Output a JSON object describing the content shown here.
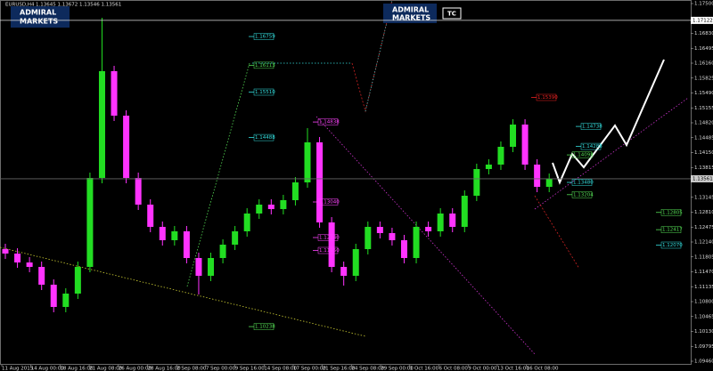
{
  "header": {
    "symbol": "EURUSD,H4",
    "ohlc": "1.13645 1.13672 1.13546 1.13561"
  },
  "brand": {
    "line1": "ADMIRAL",
    "line2": "MARKETS",
    "button": "TC"
  },
  "chart_data": {
    "type": "candlestick",
    "ylim": [
      1.0938,
      1.1758
    ],
    "up_color": "#22dd22",
    "down_color": "#ff33ff",
    "yticks": [
      {
        "value": 1.175,
        "label": "1.17500"
      },
      {
        "value": 1.1683,
        "label": "1.16830"
      },
      {
        "value": 1.16495,
        "label": "1.16495"
      },
      {
        "value": 1.1616,
        "label": "1.16160"
      },
      {
        "value": 1.15825,
        "label": "1.15825"
      },
      {
        "value": 1.1549,
        "label": "1.15490"
      },
      {
        "value": 1.15155,
        "label": "1.15155"
      },
      {
        "value": 1.1482,
        "label": "1.14820"
      },
      {
        "value": 1.14485,
        "label": "1.14485"
      },
      {
        "value": 1.1415,
        "label": "1.14150"
      },
      {
        "value": 1.13815,
        "label": "1.13815"
      },
      {
        "value": 1.13145,
        "label": "1.13145"
      },
      {
        "value": 1.1281,
        "label": "1.12810"
      },
      {
        "value": 1.12475,
        "label": "1.12475"
      },
      {
        "value": 1.1214,
        "label": "1.12140"
      },
      {
        "value": 1.11805,
        "label": "1.11805"
      },
      {
        "value": 1.1147,
        "label": "1.11470"
      },
      {
        "value": 1.11135,
        "label": "1.11135"
      },
      {
        "value": 1.108,
        "label": "1.10800"
      },
      {
        "value": 1.10465,
        "label": "1.10465"
      },
      {
        "value": 1.1013,
        "label": "1.10130"
      },
      {
        "value": 1.09795,
        "label": "1.09795"
      },
      {
        "value": 1.0946,
        "label": "1.09460"
      }
    ],
    "marker_line": {
      "value": 1.17122,
      "label": "1.17122"
    },
    "current_price": {
      "value": 1.13561,
      "label": "1.13561"
    },
    "x_labels": [
      "11 Aug 2015",
      "14 Aug 00:00",
      "18 Aug 16:00",
      "21 Aug 08:00",
      "26 Aug 00:00",
      "28 Aug 16:00",
      "2 Sep 08:00",
      "7 Sep 00:00",
      "9 Sep 16:00",
      "14 Sep 08:00",
      "17 Sep 00:00",
      "21 Sep 16:00",
      "24 Sep 08:00",
      "29 Sep 00:00",
      "1 Oct 16:00",
      "6 Oct 08:00",
      "9 Oct 00:00",
      "13 Oct 16:00",
      "16 Oct 08:00"
    ],
    "open": [
      1.1198,
      1.1188,
      1.1168,
      1.1158,
      1.1118,
      1.1068,
      1.1098,
      1.1158,
      1.1358,
      1.1598,
      1.1498,
      1.1358,
      1.1298,
      1.1248,
      1.1218,
      1.1238,
      1.1178,
      1.1138,
      1.1178,
      1.1208,
      1.1238,
      1.1278,
      1.1298,
      1.1288,
      1.1308,
      1.1348,
      1.1438,
      1.1258,
      1.1158,
      1.1138,
      1.1198,
      1.1248,
      1.1234,
      1.1218,
      1.1178,
      1.1248,
      1.1238,
      1.1278,
      1.1248,
      1.1318,
      1.1378,
      1.1388,
      1.1428,
      1.1478,
      1.1388,
      1.1338
    ],
    "high": [
      1.121,
      1.12,
      1.118,
      1.117,
      1.113,
      1.111,
      1.117,
      1.137,
      1.1718,
      1.161,
      1.151,
      1.137,
      1.131,
      1.126,
      1.125,
      1.125,
      1.119,
      1.119,
      1.122,
      1.125,
      1.129,
      1.131,
      1.131,
      1.132,
      1.136,
      1.147,
      1.145,
      1.127,
      1.117,
      1.121,
      1.126,
      1.126,
      1.1246,
      1.123,
      1.126,
      1.126,
      1.129,
      1.129,
      1.133,
      1.139,
      1.14,
      1.144,
      1.149,
      1.149,
      1.14,
      1.1368
    ],
    "low": [
      1.1176,
      1.1156,
      1.1146,
      1.1106,
      1.1056,
      1.1056,
      1.1086,
      1.1146,
      1.1346,
      1.1486,
      1.1346,
      1.1286,
      1.1236,
      1.1206,
      1.1206,
      1.1166,
      1.1096,
      1.1126,
      1.1166,
      1.1196,
      1.1226,
      1.1266,
      1.1276,
      1.1276,
      1.1296,
      1.1336,
      1.1246,
      1.1146,
      1.1116,
      1.1126,
      1.1186,
      1.1222,
      1.1206,
      1.1166,
      1.1166,
      1.1226,
      1.1226,
      1.1236,
      1.1236,
      1.1306,
      1.1366,
      1.1376,
      1.1416,
      1.1376,
      1.1326,
      1.1326
    ],
    "close": [
      1.1188,
      1.1168,
      1.1158,
      1.1118,
      1.1068,
      1.1098,
      1.1158,
      1.1358,
      1.1598,
      1.1498,
      1.1358,
      1.1298,
      1.1248,
      1.1218,
      1.1238,
      1.1178,
      1.1138,
      1.1178,
      1.1208,
      1.1238,
      1.1278,
      1.1298,
      1.1288,
      1.1308,
      1.1348,
      1.1438,
      1.1258,
      1.1158,
      1.1138,
      1.1198,
      1.1248,
      1.1234,
      1.1218,
      1.1178,
      1.1248,
      1.1238,
      1.1278,
      1.1248,
      1.1318,
      1.1378,
      1.1388,
      1.1428,
      1.1478,
      1.1388,
      1.1338,
      1.1356
    ],
    "levels": [
      {
        "value": 1.16759,
        "label": "1.16759",
        "color": "#33dddd"
      },
      {
        "value": 1.16113,
        "label": "1.16113",
        "color": "#55dd55"
      },
      {
        "value": 1.1551,
        "label": "1.15510",
        "color": "#33dddd"
      },
      {
        "value": 1.14488,
        "label": "1.14488",
        "color": "#33dddd"
      },
      {
        "value": 1.14838,
        "label": "1.14838",
        "color": "#ff44ff"
      },
      {
        "value": 1.1304,
        "label": "1.13040",
        "color": "#ff44ff"
      },
      {
        "value": 1.1224,
        "label": "1.12240",
        "color": "#ff44ff"
      },
      {
        "value": 1.1195,
        "label": "1.11950",
        "color": "#ff44ff"
      },
      {
        "value": 1.10238,
        "label": "1.10238",
        "color": "#55dd55"
      },
      {
        "value": 1.1539,
        "label": "1.15390",
        "color": "#ee2222"
      },
      {
        "value": 1.14738,
        "label": "1.14738",
        "color": "#33dddd"
      },
      {
        "value": 1.14288,
        "label": "1.14288",
        "color": "#33dddd"
      },
      {
        "value": 1.14098,
        "label": "1.14098",
        "color": "#55dd55"
      },
      {
        "value": 1.1348,
        "label": "1.13480",
        "color": "#33dddd"
      },
      {
        "value": 1.13204,
        "label": "1.13204",
        "color": "#55dd55"
      },
      {
        "value": 1.12805,
        "label": "1.12805",
        "color": "#55dd55"
      },
      {
        "value": 1.12417,
        "label": "1.12417",
        "color": "#55dd55"
      },
      {
        "value": 1.1207,
        "label": "1.12070",
        "color": "#33dddd"
      }
    ]
  }
}
